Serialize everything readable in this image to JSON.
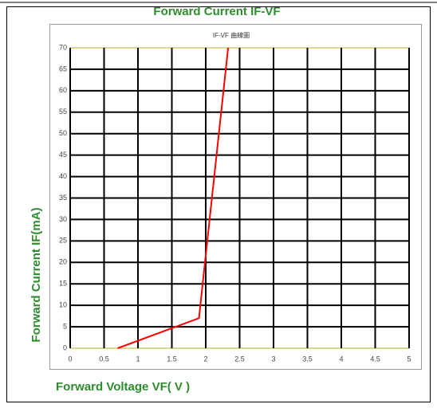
{
  "chart_data": {
    "type": "line",
    "title": "Forward Current IF-VF",
    "subtitle": "IF-VF 曲線圖",
    "x_label": "Forward Voltage VF( V )",
    "y_label": "Forward Current IF(mA)",
    "x": [
      0.7,
      1.9,
      2.33
    ],
    "values": [
      0,
      7,
      70
    ],
    "color": "#ff0000",
    "xlim": [
      0,
      5
    ],
    "xticks": [
      0,
      0.5,
      1,
      1.5,
      2,
      2.5,
      3,
      3.5,
      4,
      4.5,
      5
    ],
    "ylim": [
      0,
      70
    ],
    "yticks": [
      0,
      5,
      10,
      15,
      20,
      25,
      30,
      35,
      40,
      45,
      50,
      55,
      60,
      65,
      70
    ],
    "grid": true
  }
}
